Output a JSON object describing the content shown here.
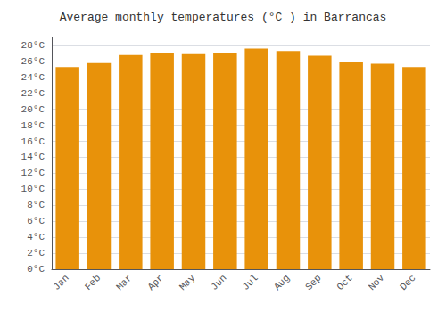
{
  "chart_data": {
    "type": "bar",
    "title": "Average monthly temperatures (°C ) in Barrancas",
    "categories": [
      "Jan",
      "Feb",
      "Mar",
      "Apr",
      "May",
      "Jun",
      "Jul",
      "Aug",
      "Sep",
      "Oct",
      "Nov",
      "Dec"
    ],
    "values": [
      25.3,
      25.8,
      26.8,
      27.0,
      26.9,
      27.1,
      27.6,
      27.3,
      26.7,
      26.0,
      25.7,
      25.3
    ],
    "color": "#E8920A",
    "ylim": [
      0,
      29
    ],
    "yticks": [
      {
        "value": 0,
        "label": "0°C"
      },
      {
        "value": 2,
        "label": "2°C"
      },
      {
        "value": 4,
        "label": "4°C"
      },
      {
        "value": 6,
        "label": "6°C"
      },
      {
        "value": 8,
        "label": "8°C"
      },
      {
        "value": 10,
        "label": "10°C"
      },
      {
        "value": 12,
        "label": "12°C"
      },
      {
        "value": 14,
        "label": "14°C"
      },
      {
        "value": 16,
        "label": "16°C"
      },
      {
        "value": 18,
        "label": "18°C"
      },
      {
        "value": 20,
        "label": "20°C"
      },
      {
        "value": 22,
        "label": "22°C"
      },
      {
        "value": 24,
        "label": "24°C"
      },
      {
        "value": 26,
        "label": "26°C"
      },
      {
        "value": 28,
        "label": "28°C"
      }
    ],
    "grid": true
  }
}
